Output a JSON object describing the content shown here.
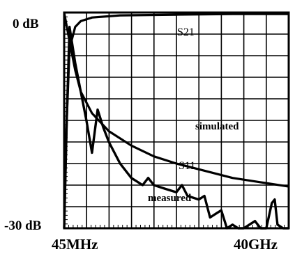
{
  "chart_data": {
    "type": "line",
    "title": "",
    "xlabel": "",
    "ylabel": "",
    "x_ticks": [
      "45MHz",
      "40GHz"
    ],
    "y_ticks": [
      "0 dB",
      "-30 dB"
    ],
    "xlim": [
      0.045,
      40
    ],
    "ylim": [
      -30,
      0
    ],
    "grid": true,
    "legend": "none",
    "annotations": [
      "S21",
      "S11",
      "simulated",
      "measured"
    ],
    "series": [
      {
        "role": "S21",
        "x": [
          0.045,
          0.5,
          1,
          2,
          3,
          5,
          10,
          20,
          30,
          40
        ],
        "y": [
          -30,
          -15,
          -5,
          -2,
          -1.2,
          -0.7,
          -0.4,
          -0.3,
          -0.2,
          -0.2
        ]
      },
      {
        "role": "S11 simulated",
        "x": [
          0.045,
          1,
          2,
          3,
          5,
          8,
          12,
          16,
          20,
          25,
          30,
          35,
          40
        ],
        "y": [
          0,
          -4,
          -8,
          -11,
          -14,
          -16.5,
          -18.5,
          -20,
          -21,
          -22,
          -23,
          -23.6,
          -24.2
        ]
      },
      {
        "role": "S11 measured",
        "x": [
          0.045,
          0.5,
          1,
          2,
          3,
          4,
          5,
          6,
          7,
          8,
          10,
          12,
          14,
          15,
          16,
          18,
          20,
          21,
          22,
          24,
          25,
          26,
          27,
          28,
          29,
          30,
          31,
          32,
          33,
          34,
          35,
          36,
          37,
          37.5,
          38,
          39,
          40
        ],
        "y": [
          -30,
          -15,
          -2,
          -7,
          -11,
          -15,
          -19.5,
          -13.5,
          -16,
          -18,
          -21,
          -23,
          -24,
          -23,
          -24,
          -24.5,
          -25,
          -24,
          -25.5,
          -26,
          -25.5,
          -28.5,
          -28,
          -27.5,
          -30,
          -29.5,
          -30,
          -30,
          -29.5,
          -29,
          -30,
          -30,
          -26.5,
          -26,
          -29.5,
          -30,
          -30
        ]
      }
    ]
  }
}
